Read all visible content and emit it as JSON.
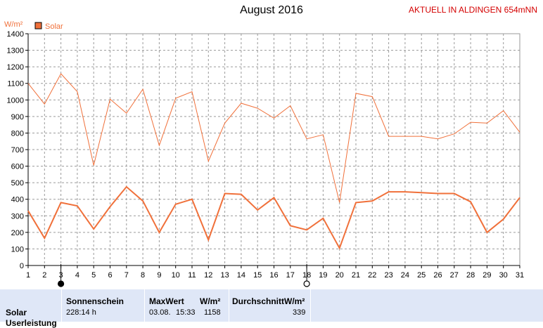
{
  "header": {
    "title": "August 2016",
    "station": "AKTUELL IN ALDINGEN 654mNN"
  },
  "colors": {
    "series": "#f0703a",
    "station_text": "#d40000",
    "grid": "#9a9a9a",
    "axis": "#000000",
    "panel_bg": "#dfe7f7"
  },
  "chart_data": {
    "type": "line",
    "ylabel": "W/m²",
    "ylim": [
      0,
      1400
    ],
    "yticks": [
      0,
      100,
      200,
      300,
      400,
      500,
      600,
      700,
      800,
      900,
      1000,
      1100,
      1200,
      1300,
      1400
    ],
    "x": [
      1,
      2,
      3,
      4,
      5,
      6,
      7,
      8,
      9,
      10,
      11,
      12,
      13,
      14,
      15,
      16,
      17,
      18,
      19,
      20,
      21,
      22,
      23,
      24,
      25,
      26,
      27,
      28,
      29,
      30,
      31
    ],
    "xlim": [
      1,
      31
    ],
    "grid": true,
    "legend": {
      "position": "top-left",
      "entries": [
        "Solar"
      ]
    },
    "series": [
      {
        "name": "Solar",
        "role": "daily maximum (thin line)",
        "values": [
          1100,
          975,
          1158,
          1050,
          605,
          1005,
          920,
          1065,
          725,
          1010,
          1050,
          630,
          860,
          980,
          950,
          890,
          965,
          765,
          790,
          380,
          1040,
          1020,
          780,
          780,
          780,
          765,
          795,
          865,
          860,
          935,
          805
        ]
      },
      {
        "name": "Solar",
        "role": "daily average (thick line)",
        "values": [
          330,
          165,
          380,
          360,
          220,
          355,
          475,
          390,
          200,
          370,
          400,
          155,
          435,
          430,
          335,
          410,
          240,
          215,
          285,
          105,
          380,
          390,
          445,
          445,
          440,
          435,
          435,
          385,
          200,
          280,
          410
        ]
      }
    ],
    "markers": [
      {
        "day": 3,
        "symbol": "filled-circle",
        "meaning": "new moon"
      },
      {
        "day": 18,
        "symbol": "open-circle",
        "meaning": "full moon"
      }
    ]
  },
  "summary": {
    "row_label": "Solar",
    "row_label_cut": "Userleistung",
    "sonnenschein": {
      "header": "Sonnenschein",
      "value": "228:14 h"
    },
    "maxwert": {
      "header": "MaxWert",
      "unit": "W/m²",
      "date": "03.08.",
      "time": "15:33",
      "value": "1158"
    },
    "durchschnitt": {
      "header": "Durchschnitt",
      "unit": "W/m²",
      "value": "339"
    }
  }
}
